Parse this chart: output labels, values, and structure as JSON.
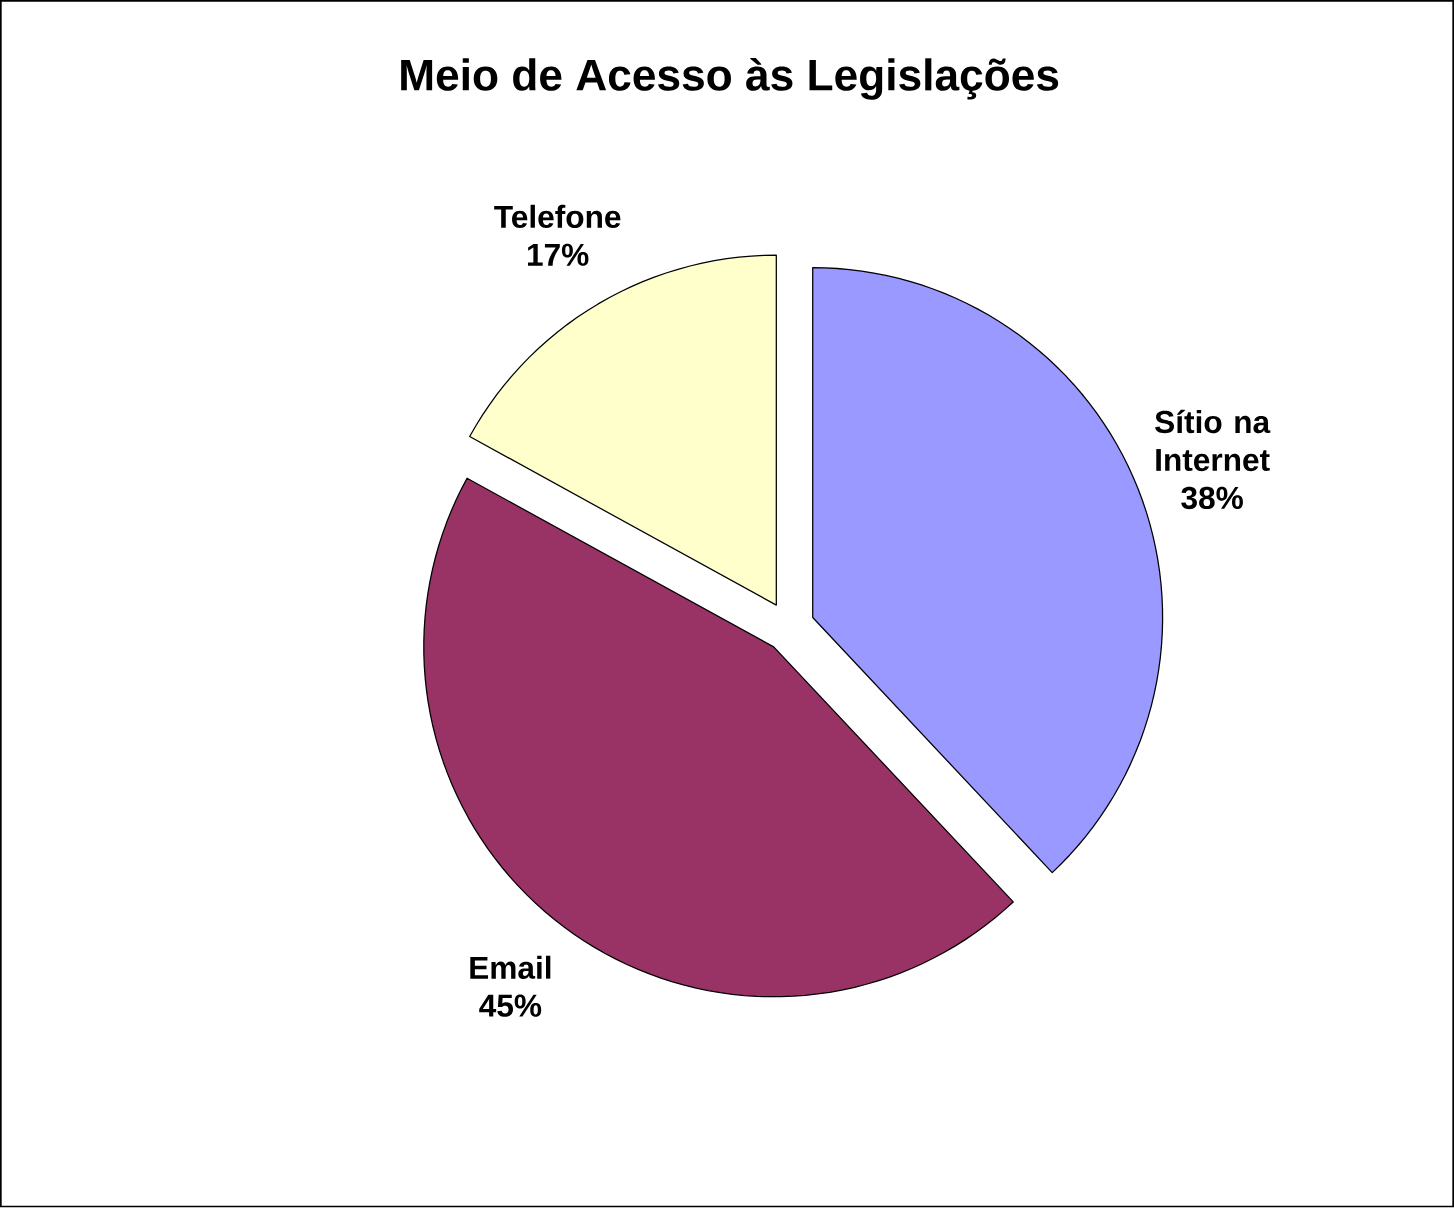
{
  "chart_data": {
    "type": "pie",
    "title": "Meio de Acesso às Legislações",
    "categories": [
      "Sítio na Internet",
      "Email",
      "Telefone"
    ],
    "values": [
      38,
      45,
      17
    ],
    "value_labels": [
      "38%",
      "45%",
      "17%"
    ],
    "colors": [
      "#9999ff",
      "#993366",
      "#ffffcc"
    ]
  }
}
